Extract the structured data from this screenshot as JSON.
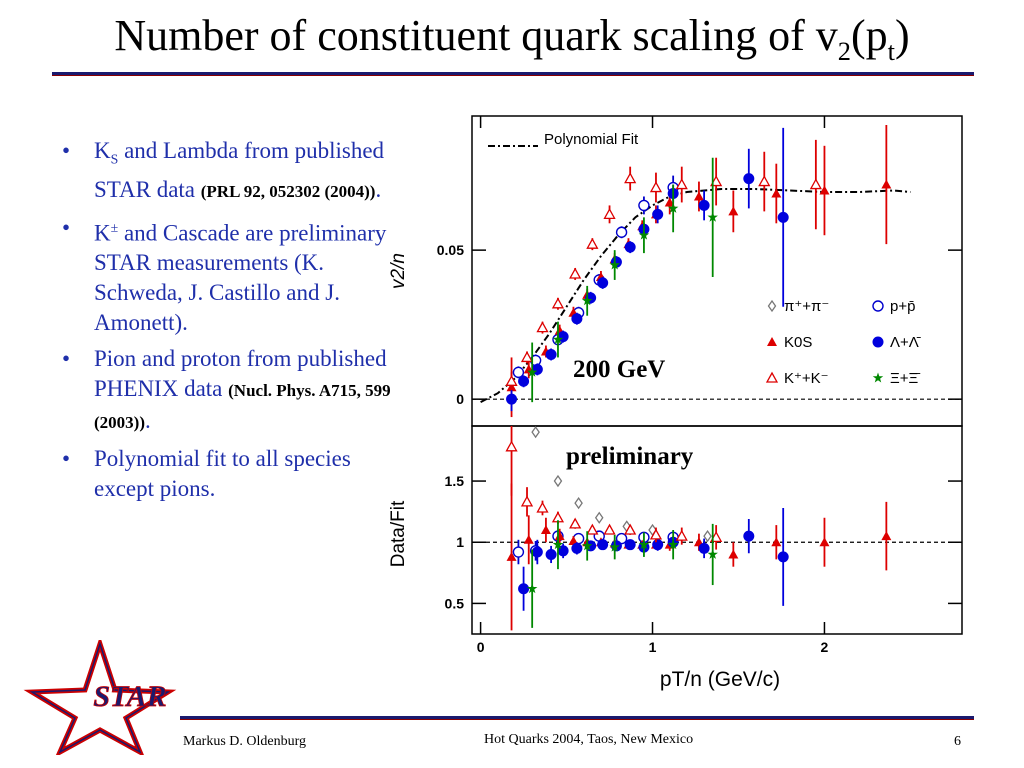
{
  "slide": {
    "title_main": "Number of constituent quark scaling of v",
    "title_sub2": "2",
    "title_paren_open": "(p",
    "title_sub_t": "t",
    "title_paren_close": ")",
    "bullets": [
      {
        "b1a": "K",
        "b1b": "S",
        "b1c": " and Lambda from published STAR data ",
        "b1d": "(PRL 92, 052302 (2004))",
        "b1e": "."
      },
      {
        "b2a": "K",
        "b2b": "±",
        "b2c": " and Cascade are preliminary STAR measurements (K. Schweda, J. Castillo and J. Amonett)."
      },
      {
        "b3a": "Pion and proton from published PHENIX data ",
        "b3b": "(Nucl. Phys. A715, 599 (2003))",
        "b3c": "."
      },
      {
        "b4a": "Polynomial fit to all species except pions."
      }
    ],
    "footer_author": "Markus D. Oldenburg",
    "footer_event": "Hot Quarks 2004, Taos, New Mexico",
    "footer_page": "6",
    "logo_text": "STAR"
  },
  "chart_data": [
    {
      "type": "scatter",
      "panel": "top",
      "ylabel": "v2/n",
      "xlim": [
        -0.05,
        2.8
      ],
      "ylim": [
        -0.009,
        0.095
      ],
      "yticks": [
        0,
        0.05
      ],
      "ytick_labels": [
        "0",
        "0.05"
      ],
      "annotation_energy": "200 GeV",
      "annotation_prelim": "preliminary",
      "fit_label": "Polynomial Fit",
      "fit_curve": [
        [
          0.0,
          -0.001
        ],
        [
          0.1,
          0.002
        ],
        [
          0.2,
          0.007
        ],
        [
          0.3,
          0.014
        ],
        [
          0.4,
          0.022
        ],
        [
          0.5,
          0.031
        ],
        [
          0.6,
          0.04
        ],
        [
          0.7,
          0.048
        ],
        [
          0.8,
          0.055
        ],
        [
          0.9,
          0.061
        ],
        [
          1.0,
          0.065
        ],
        [
          1.1,
          0.068
        ],
        [
          1.2,
          0.0695
        ],
        [
          1.4,
          0.0705
        ],
        [
          1.6,
          0.0705
        ],
        [
          1.8,
          0.07
        ],
        [
          2.0,
          0.0695
        ],
        [
          2.2,
          0.0695
        ],
        [
          2.4,
          0.07
        ],
        [
          2.5,
          0.0695
        ]
      ],
      "series": [
        {
          "name": "π⁺+π⁻",
          "marker": "diamond-open",
          "color": "#777777",
          "points": []
        },
        {
          "name": "p+p̄",
          "marker": "circle-open",
          "color": "#0000cc",
          "points": [
            [
              0.22,
              0.009,
              0.002
            ],
            [
              0.32,
              0.013,
              0.002
            ],
            [
              0.45,
              0.02,
              0.002
            ],
            [
              0.57,
              0.029,
              0.002
            ],
            [
              0.69,
              0.04,
              0.002
            ],
            [
              0.82,
              0.056,
              0.002
            ],
            [
              0.95,
              0.065,
              0.003
            ],
            [
              1.12,
              0.071,
              0.004
            ]
          ]
        },
        {
          "name": "K0S",
          "marker": "triangle-filled",
          "color": "#dd0000",
          "points": [
            [
              0.18,
              0.004,
              0.01
            ],
            [
              0.28,
              0.01,
              0.003
            ],
            [
              0.38,
              0.016,
              0.002
            ],
            [
              0.46,
              0.023,
              0.002
            ],
            [
              0.54,
              0.029,
              0.002
            ],
            [
              0.62,
              0.035,
              0.002
            ],
            [
              0.7,
              0.041,
              0.002
            ],
            [
              0.78,
              0.047,
              0.002
            ],
            [
              0.86,
              0.052,
              0.002
            ],
            [
              0.94,
              0.058,
              0.002
            ],
            [
              1.02,
              0.062,
              0.003
            ],
            [
              1.1,
              0.066,
              0.004
            ],
            [
              1.27,
              0.068,
              0.005
            ],
            [
              1.47,
              0.063,
              0.007
            ],
            [
              1.72,
              0.069,
              0.01
            ],
            [
              2.0,
              0.07,
              0.015
            ],
            [
              2.36,
              0.072,
              0.02
            ]
          ]
        },
        {
          "name": "Λ+Λ̄",
          "marker": "circle-filled",
          "color": "#0000dd",
          "points": [
            [
              0.18,
              0.0,
              0.004
            ],
            [
              0.25,
              0.006,
              0.002
            ],
            [
              0.33,
              0.01,
              0.002
            ],
            [
              0.41,
              0.015,
              0.002
            ],
            [
              0.48,
              0.021,
              0.002
            ],
            [
              0.56,
              0.027,
              0.002
            ],
            [
              0.64,
              0.034,
              0.002
            ],
            [
              0.71,
              0.039,
              0.002
            ],
            [
              0.79,
              0.046,
              0.002
            ],
            [
              0.87,
              0.051,
              0.002
            ],
            [
              0.95,
              0.057,
              0.002
            ],
            [
              1.03,
              0.062,
              0.003
            ],
            [
              1.12,
              0.069,
              0.003
            ],
            [
              1.3,
              0.065,
              0.005
            ],
            [
              1.56,
              0.074,
              0.01
            ],
            [
              1.76,
              0.061,
              0.03
            ]
          ]
        },
        {
          "name": "K⁺+K⁻",
          "marker": "triangle-open",
          "color": "#dd0000",
          "points": [
            [
              0.18,
              0.006,
              0.003
            ],
            [
              0.27,
              0.014,
              0.002
            ],
            [
              0.36,
              0.024,
              0.002
            ],
            [
              0.45,
              0.032,
              0.002
            ],
            [
              0.55,
              0.042,
              0.002
            ],
            [
              0.65,
              0.052,
              0.002
            ],
            [
              0.75,
              0.062,
              0.003
            ],
            [
              0.87,
              0.074,
              0.004
            ],
            [
              1.02,
              0.071,
              0.005
            ],
            [
              1.17,
              0.072,
              0.006
            ],
            [
              1.37,
              0.073,
              0.008
            ],
            [
              1.65,
              0.073,
              0.01
            ],
            [
              1.95,
              0.072,
              0.015
            ]
          ]
        },
        {
          "name": "Ξ+Ξ̄",
          "marker": "star-filled",
          "color": "#008800",
          "points": [
            [
              0.3,
              0.009,
              0.01
            ],
            [
              0.45,
              0.02,
              0.006
            ],
            [
              0.62,
              0.033,
              0.005
            ],
            [
              0.78,
              0.045,
              0.005
            ],
            [
              0.95,
              0.055,
              0.006
            ],
            [
              1.12,
              0.064,
              0.008
            ],
            [
              1.35,
              0.061,
              0.02
            ]
          ]
        }
      ]
    },
    {
      "type": "scatter",
      "panel": "bottom",
      "xlabel": "pT/n (GeV/c)",
      "ylabel": "Data/Fit",
      "xlim": [
        -0.05,
        2.8
      ],
      "ylim": [
        0.25,
        1.95
      ],
      "xticks": [
        0,
        1,
        2
      ],
      "xtick_labels": [
        "0",
        "1",
        "2"
      ],
      "yticks": [
        0.5,
        1,
        1.5
      ],
      "ytick_labels": [
        "0.5",
        "1",
        "1.5"
      ],
      "series": [
        {
          "name": "π⁺+π⁻",
          "marker": "diamond-open",
          "color": "#777777",
          "points": [
            [
              0.32,
              1.9,
              0
            ],
            [
              0.45,
              1.5,
              0
            ],
            [
              0.57,
              1.32,
              0
            ],
            [
              0.69,
              1.2,
              0
            ],
            [
              0.85,
              1.13,
              0
            ],
            [
              1.0,
              1.1,
              0
            ],
            [
              1.32,
              1.05,
              0
            ]
          ]
        },
        {
          "name": "p+p̄",
          "marker": "circle-open",
          "color": "#0000cc",
          "points": [
            [
              0.22,
              0.92,
              0.1
            ],
            [
              0.32,
              0.93,
              0.08
            ],
            [
              0.45,
              1.05,
              0.05
            ],
            [
              0.57,
              1.03,
              0.04
            ],
            [
              0.69,
              1.05,
              0.03
            ],
            [
              0.82,
              1.03,
              0.03
            ],
            [
              0.95,
              1.04,
              0.03
            ],
            [
              1.12,
              1.04,
              0.04
            ]
          ]
        },
        {
          "name": "K0S",
          "marker": "triangle-filled",
          "color": "#dd0000",
          "points": [
            [
              0.18,
              0.88,
              0.6
            ],
            [
              0.28,
              1.02,
              0.2
            ],
            [
              0.38,
              1.1,
              0.1
            ],
            [
              0.46,
              1.05,
              0.06
            ],
            [
              0.54,
              1.01,
              0.04
            ],
            [
              0.62,
              1.0,
              0.03
            ],
            [
              0.7,
              1.0,
              0.03
            ],
            [
              0.78,
              0.99,
              0.03
            ],
            [
              0.86,
              0.98,
              0.03
            ],
            [
              0.94,
              0.98,
              0.03
            ],
            [
              1.02,
              0.98,
              0.04
            ],
            [
              1.1,
              0.98,
              0.05
            ],
            [
              1.27,
              1.0,
              0.07
            ],
            [
              1.47,
              0.9,
              0.1
            ],
            [
              1.72,
              1.0,
              0.14
            ],
            [
              2.0,
              1.0,
              0.2
            ],
            [
              2.36,
              1.05,
              0.28
            ]
          ]
        },
        {
          "name": "Λ+Λ̄",
          "marker": "circle-filled",
          "color": "#0000dd",
          "points": [
            [
              0.25,
              0.62,
              0.18
            ],
            [
              0.33,
              0.92,
              0.1
            ],
            [
              0.41,
              0.9,
              0.07
            ],
            [
              0.48,
              0.93,
              0.06
            ],
            [
              0.56,
              0.95,
              0.05
            ],
            [
              0.64,
              0.97,
              0.04
            ],
            [
              0.71,
              0.98,
              0.04
            ],
            [
              0.79,
              0.97,
              0.04
            ],
            [
              0.87,
              0.98,
              0.04
            ],
            [
              0.95,
              0.96,
              0.04
            ],
            [
              1.03,
              0.98,
              0.05
            ],
            [
              1.12,
              1.0,
              0.05
            ],
            [
              1.3,
              0.95,
              0.08
            ],
            [
              1.56,
              1.05,
              0.14
            ],
            [
              1.76,
              0.88,
              0.4
            ]
          ]
        },
        {
          "name": "K⁺+K⁻",
          "marker": "triangle-open",
          "color": "#dd0000",
          "points": [
            [
              0.18,
              1.78,
              0.4
            ],
            [
              0.27,
              1.33,
              0.12
            ],
            [
              0.36,
              1.28,
              0.06
            ],
            [
              0.45,
              1.2,
              0.05
            ],
            [
              0.55,
              1.15,
              0.04
            ],
            [
              0.65,
              1.1,
              0.03
            ],
            [
              0.75,
              1.1,
              0.03
            ],
            [
              0.87,
              1.1,
              0.04
            ],
            [
              1.02,
              1.06,
              0.06
            ],
            [
              1.17,
              1.05,
              0.07
            ],
            [
              1.37,
              1.04,
              0.1
            ]
          ]
        },
        {
          "name": "Ξ+Ξ̄",
          "marker": "star-filled",
          "color": "#008800",
          "points": [
            [
              0.3,
              0.62,
              0.32
            ],
            [
              0.45,
              0.98,
              0.2
            ],
            [
              0.62,
              0.97,
              0.12
            ],
            [
              0.78,
              0.96,
              0.1
            ],
            [
              0.95,
              0.98,
              0.1
            ],
            [
              1.12,
              0.98,
              0.12
            ],
            [
              1.35,
              0.9,
              0.25
            ]
          ]
        }
      ]
    }
  ]
}
